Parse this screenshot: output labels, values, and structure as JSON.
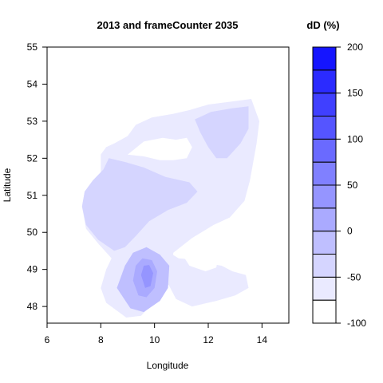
{
  "chart_data": {
    "type": "heatmap",
    "subtype": "filled-contour",
    "title": "2013 and frameCounter 2035",
    "xlabel": "Longitude",
    "ylabel": "Latitude",
    "xlim": [
      6,
      15
    ],
    "ylim": [
      47.55,
      55
    ],
    "x_ticks": [
      6,
      8,
      10,
      12,
      14
    ],
    "y_ticks": [
      48,
      49,
      50,
      51,
      52,
      53,
      54,
      55
    ],
    "grid": false,
    "legend_position": "right",
    "colorbar": {
      "title": "dD (%)",
      "range": [
        -100,
        200
      ],
      "tick_labels": [
        "200",
        "150",
        "100",
        "50",
        "0",
        "-50",
        "-100"
      ],
      "tick_values": [
        200,
        150,
        100,
        50,
        0,
        -50,
        -100
      ],
      "levels": [
        -100,
        -75,
        -50,
        -25,
        0,
        25,
        50,
        75,
        100,
        125,
        150,
        175,
        200
      ],
      "low_color": "#ffffff",
      "high_color": "#0000ff"
    },
    "regions": [
      {
        "name": "region-outer",
        "level": -75,
        "polygon": [
          [
            7.3,
            50.7
          ],
          [
            7.4,
            51.1
          ],
          [
            7.6,
            51.3
          ],
          [
            8.0,
            51.6
          ],
          [
            8.0,
            52.1
          ],
          [
            8.2,
            52.3
          ],
          [
            8.5,
            52.4
          ],
          [
            9.0,
            52.6
          ],
          [
            9.3,
            52.9
          ],
          [
            9.9,
            53.1
          ],
          [
            10.7,
            53.2
          ],
          [
            11.3,
            53.3
          ],
          [
            12.0,
            53.45
          ],
          [
            13.1,
            53.55
          ],
          [
            13.6,
            53.6
          ],
          [
            13.9,
            53.0
          ],
          [
            13.8,
            52.4
          ],
          [
            13.55,
            51.4
          ],
          [
            13.35,
            50.85
          ],
          [
            12.8,
            50.4
          ],
          [
            12.2,
            50.2
          ],
          [
            11.4,
            49.85
          ],
          [
            10.7,
            49.45
          ],
          [
            10.65,
            48.7
          ],
          [
            10.2,
            48.3
          ],
          [
            9.5,
            47.75
          ],
          [
            8.95,
            47.7
          ],
          [
            8.2,
            48.1
          ],
          [
            8.0,
            48.5
          ],
          [
            8.2,
            49.0
          ],
          [
            8.4,
            49.3
          ],
          [
            7.9,
            49.7
          ],
          [
            7.45,
            50.1
          ]
        ]
      },
      {
        "name": "region-east-lobe",
        "level": -75,
        "polygon": [
          [
            10.2,
            49.6
          ],
          [
            10.9,
            49.3
          ],
          [
            11.6,
            49.25
          ],
          [
            12.1,
            49.15
          ],
          [
            12.5,
            49.1
          ],
          [
            12.9,
            48.95
          ],
          [
            13.4,
            48.85
          ],
          [
            13.5,
            48.5
          ],
          [
            13.0,
            48.3
          ],
          [
            12.3,
            48.15
          ],
          [
            11.4,
            48.0
          ],
          [
            10.8,
            48.2
          ],
          [
            10.3,
            48.9
          ]
        ]
      },
      {
        "name": "region-nw-band",
        "level": -50,
        "polygon": [
          [
            7.3,
            50.7
          ],
          [
            7.4,
            51.1
          ],
          [
            7.7,
            51.4
          ],
          [
            8.1,
            51.7
          ],
          [
            8.3,
            52.0
          ],
          [
            8.9,
            51.9
          ],
          [
            9.6,
            51.75
          ],
          [
            10.4,
            51.5
          ],
          [
            11.3,
            51.35
          ],
          [
            11.6,
            51.1
          ],
          [
            11.2,
            50.8
          ],
          [
            10.5,
            50.6
          ],
          [
            9.8,
            50.3
          ],
          [
            9.3,
            49.9
          ],
          [
            8.9,
            49.6
          ],
          [
            8.5,
            49.5
          ],
          [
            7.9,
            49.8
          ],
          [
            7.45,
            50.2
          ]
        ]
      },
      {
        "name": "region-ne-band",
        "level": -50,
        "polygon": [
          [
            11.5,
            53.05
          ],
          [
            12.1,
            53.25
          ],
          [
            12.9,
            53.35
          ],
          [
            13.5,
            53.4
          ],
          [
            13.5,
            52.8
          ],
          [
            13.2,
            52.4
          ],
          [
            12.7,
            52.0
          ],
          [
            12.3,
            52.0
          ],
          [
            12.0,
            52.3
          ],
          [
            11.7,
            52.7
          ]
        ]
      },
      {
        "name": "region-south-mid",
        "level": -25,
        "polygon": [
          [
            8.6,
            48.5
          ],
          [
            8.9,
            49.1
          ],
          [
            9.2,
            49.45
          ],
          [
            9.7,
            49.6
          ],
          [
            10.2,
            49.4
          ],
          [
            10.55,
            49.1
          ],
          [
            10.5,
            48.5
          ],
          [
            10.2,
            48.15
          ],
          [
            9.6,
            47.85
          ],
          [
            9.1,
            47.95
          ]
        ]
      },
      {
        "name": "region-south-core",
        "level": 0,
        "polygon": [
          [
            9.2,
            48.7
          ],
          [
            9.3,
            49.1
          ],
          [
            9.55,
            49.3
          ],
          [
            9.9,
            49.25
          ],
          [
            10.1,
            48.95
          ],
          [
            10.0,
            48.5
          ],
          [
            9.7,
            48.25
          ],
          [
            9.4,
            48.3
          ]
        ]
      },
      {
        "name": "region-south-peak",
        "level": 25,
        "polygon": [
          [
            9.5,
            48.85
          ],
          [
            9.6,
            49.1
          ],
          [
            9.8,
            49.12
          ],
          [
            9.95,
            48.9
          ],
          [
            9.85,
            48.55
          ],
          [
            9.65,
            48.5
          ]
        ]
      }
    ],
    "holes": [
      {
        "name": "hole-north",
        "polygon": [
          [
            9.0,
            52.1
          ],
          [
            9.6,
            52.45
          ],
          [
            10.3,
            52.55
          ],
          [
            10.8,
            52.5
          ],
          [
            11.2,
            52.55
          ],
          [
            11.4,
            52.3
          ],
          [
            11.2,
            52.0
          ],
          [
            10.7,
            51.95
          ],
          [
            10.2,
            51.95
          ],
          [
            9.6,
            52.05
          ]
        ]
      },
      {
        "name": "hole-east",
        "polygon": [
          [
            10.9,
            49.55
          ],
          [
            11.6,
            49.75
          ],
          [
            12.2,
            49.95
          ],
          [
            12.6,
            49.9
          ],
          [
            12.4,
            49.45
          ],
          [
            12.3,
            49.05
          ],
          [
            11.9,
            48.95
          ],
          [
            11.3,
            49.1
          ]
        ]
      }
    ]
  }
}
